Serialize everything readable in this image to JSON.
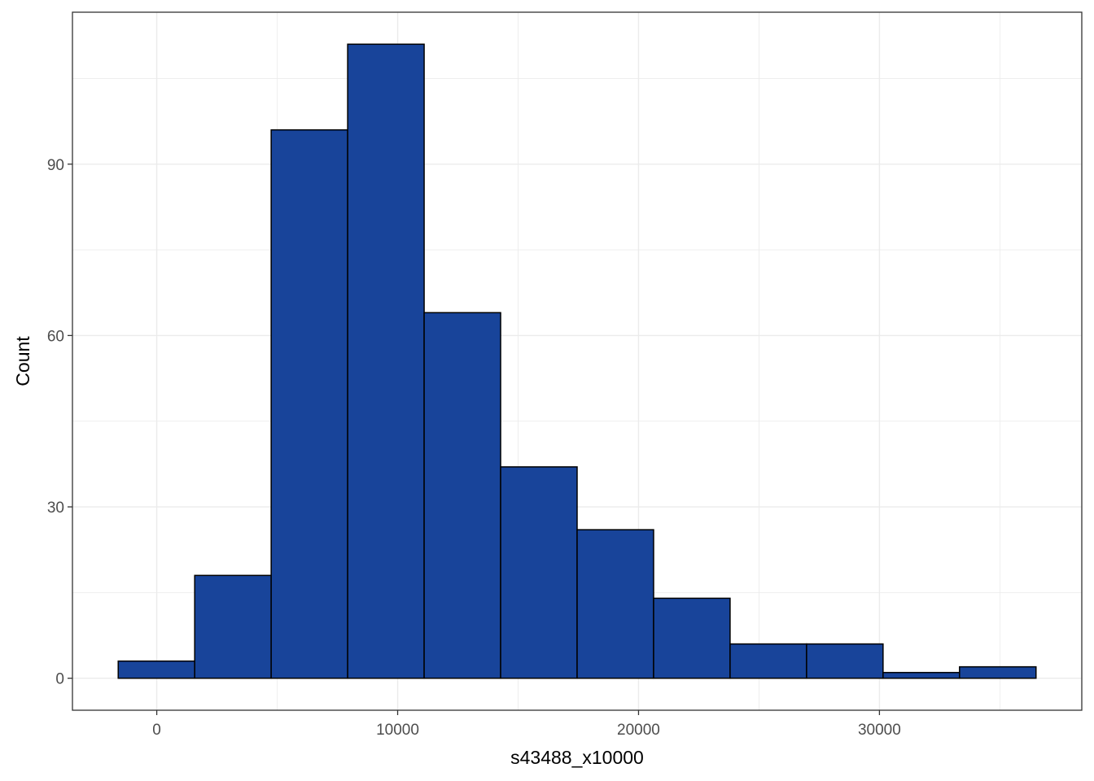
{
  "chart_data": {
    "type": "bar",
    "title": "",
    "xlabel": "s43488_x10000",
    "ylabel": "Count",
    "bins": [
      {
        "x_start": -1600,
        "x_end": 1575,
        "count": 3
      },
      {
        "x_start": 1575,
        "x_end": 4750,
        "count": 18
      },
      {
        "x_start": 4750,
        "x_end": 7925,
        "count": 96
      },
      {
        "x_start": 7925,
        "x_end": 11100,
        "count": 111
      },
      {
        "x_start": 11100,
        "x_end": 14275,
        "count": 64
      },
      {
        "x_start": 14275,
        "x_end": 17450,
        "count": 37
      },
      {
        "x_start": 17450,
        "x_end": 20625,
        "count": 26
      },
      {
        "x_start": 20625,
        "x_end": 23800,
        "count": 14
      },
      {
        "x_start": 23800,
        "x_end": 26975,
        "count": 6
      },
      {
        "x_start": 26975,
        "x_end": 30150,
        "count": 6
      },
      {
        "x_start": 30150,
        "x_end": 33325,
        "count": 1
      },
      {
        "x_start": 33325,
        "x_end": 36500,
        "count": 2
      }
    ],
    "xlim": [
      -3500,
      38400
    ],
    "ylim": [
      -5.6,
      116.6
    ],
    "x_ticks": [
      0,
      10000,
      20000,
      30000
    ],
    "x_tick_labels": [
      "0",
      "10000",
      "20000",
      "30000"
    ],
    "y_ticks": [
      0,
      30,
      60,
      90
    ],
    "y_tick_labels": [
      "0",
      "30",
      "60",
      "90"
    ],
    "x_minor_ticks": [
      5000,
      15000,
      25000,
      35000
    ],
    "y_minor_ticks": [
      15,
      45,
      75,
      105
    ],
    "grid": true,
    "colors": {
      "bar_fill": "#18449A",
      "bar_stroke": "#000000",
      "grid": "#EBEBEB",
      "panel_border": "#333333"
    }
  }
}
